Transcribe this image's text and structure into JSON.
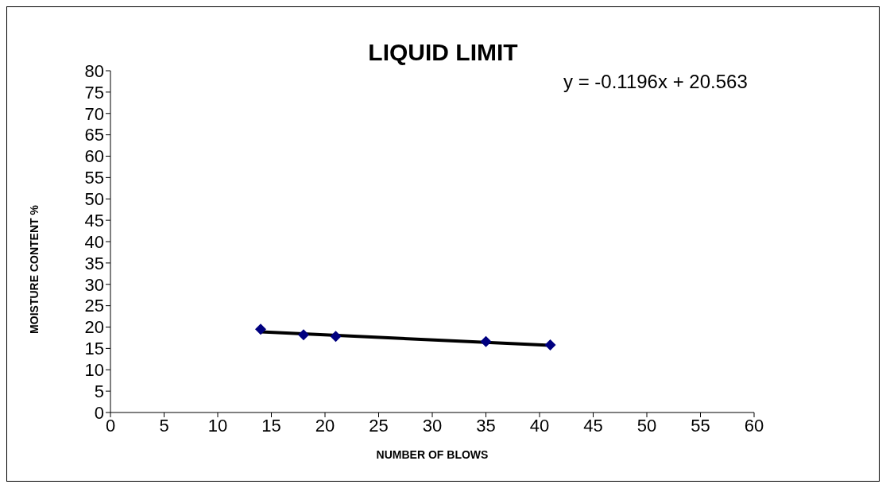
{
  "chart_data": {
    "type": "scatter",
    "title": "LIQUID LIMIT",
    "xlabel": "NUMBER OF BLOWS",
    "ylabel": "MOISTURE CONTENT %",
    "annotations": [
      "y = -0.1196x + 20.563"
    ],
    "xlim": [
      0,
      60
    ],
    "xticks": [
      0,
      5,
      10,
      15,
      20,
      25,
      30,
      35,
      40,
      45,
      50,
      55,
      60
    ],
    "ylim": [
      0,
      80
    ],
    "yticks": [
      0,
      5,
      10,
      15,
      20,
      25,
      30,
      35,
      40,
      45,
      50,
      55,
      60,
      65,
      70,
      75,
      80
    ],
    "grid": false,
    "legend": false,
    "series": [
      {
        "color": "#000080",
        "marker": "diamond",
        "x": [
          14,
          18,
          21,
          35,
          41
        ],
        "values": [
          19.5,
          18.2,
          17.8,
          16.6,
          15.8
        ]
      },
      {
        "type": "line",
        "color": "#000000",
        "marker": "none",
        "x": [
          14,
          41
        ],
        "values": [
          18.9,
          15.7
        ]
      }
    ]
  }
}
